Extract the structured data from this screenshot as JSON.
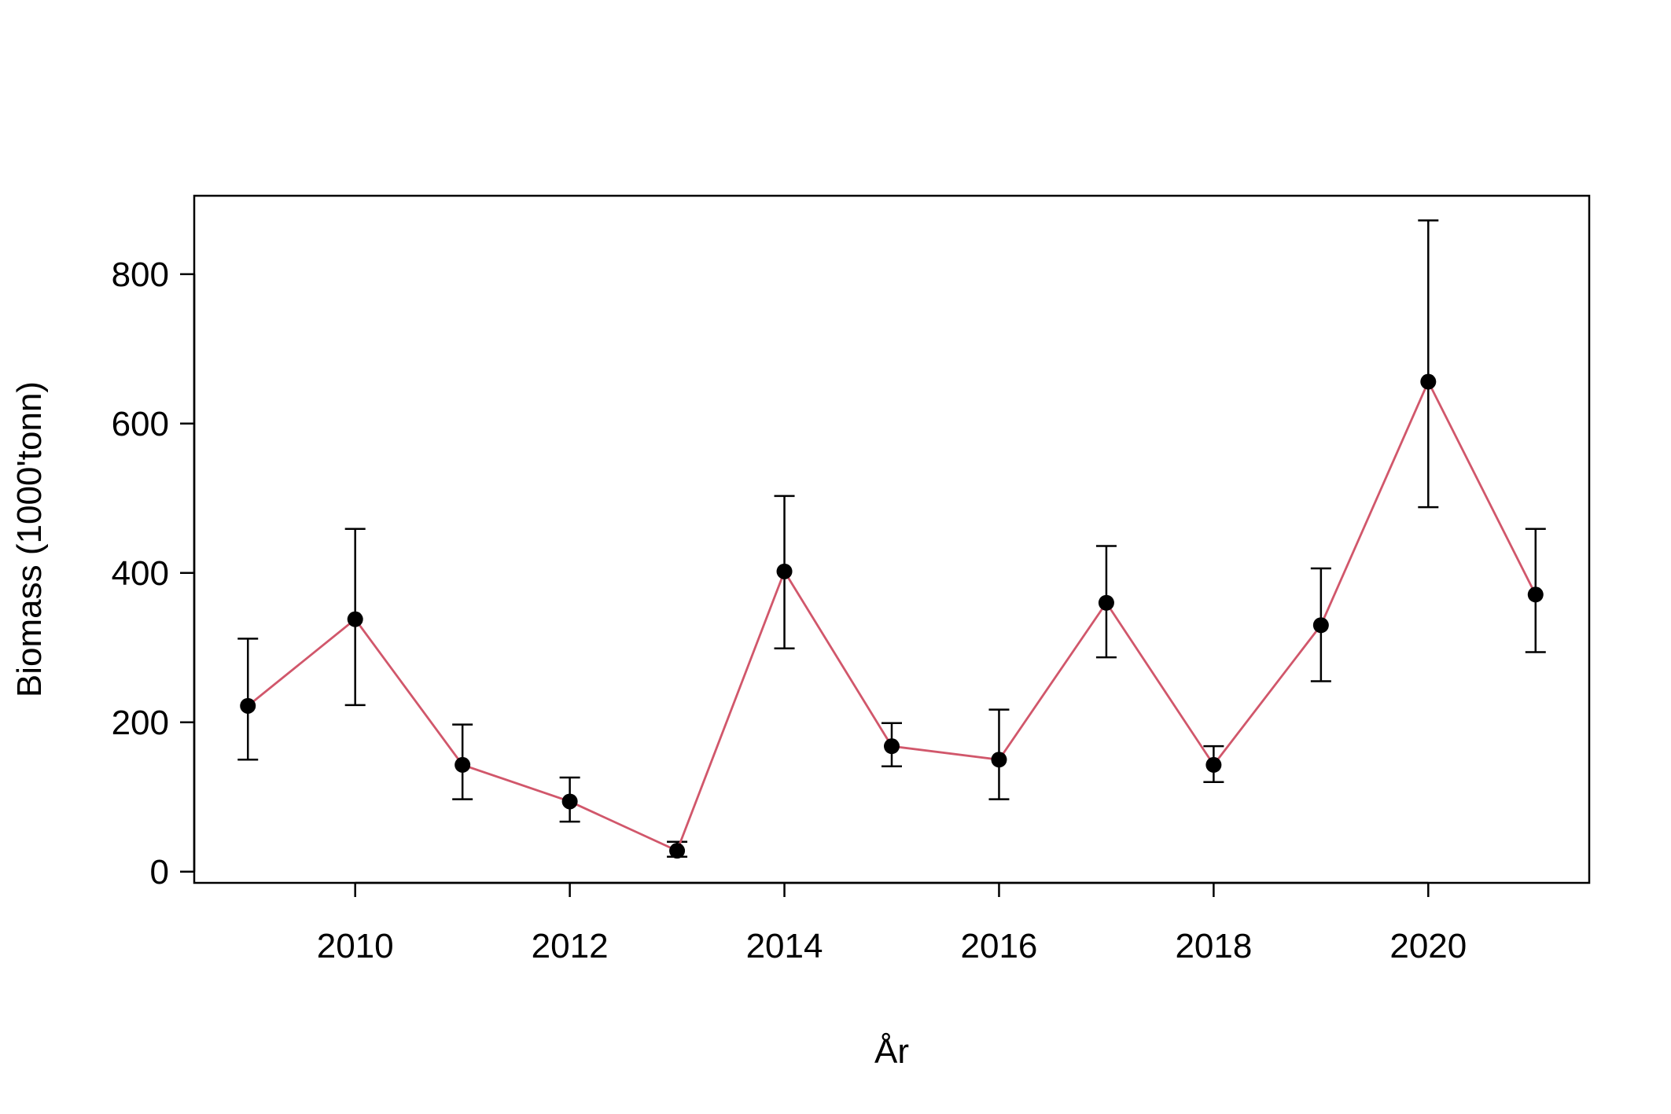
{
  "chart_data": {
    "type": "line",
    "title": "",
    "xlabel": "År",
    "ylabel": "Biomass (1000'tonn)",
    "xlim": [
      2008.5,
      2021.5
    ],
    "ylim": [
      -15,
      905
    ],
    "x_ticks": [
      2010,
      2012,
      2014,
      2016,
      2018,
      2020
    ],
    "y_ticks": [
      0,
      200,
      400,
      600,
      800
    ],
    "x_tick_labels": [
      "2010",
      "2012",
      "2014",
      "2016",
      "2018",
      "2020"
    ],
    "y_tick_labels": [
      "0",
      "200",
      "400",
      "600",
      "800"
    ],
    "grid": false,
    "legend": "none",
    "line_color": "#d1576b",
    "point_color": "#000000",
    "series": [
      {
        "x": [
          2009,
          2010,
          2011,
          2012,
          2013,
          2014,
          2015,
          2016,
          2017,
          2018,
          2019,
          2020,
          2021
        ],
        "y": [
          222,
          338,
          143,
          94,
          28,
          402,
          168,
          150,
          360,
          143,
          330,
          656,
          371
        ],
        "lower": [
          150,
          223,
          97,
          67,
          20,
          299,
          141,
          97,
          287,
          120,
          255,
          488,
          294
        ],
        "upper": [
          312,
          459,
          197,
          126,
          40,
          503,
          199,
          217,
          436,
          168,
          406,
          872,
          459
        ]
      }
    ]
  }
}
